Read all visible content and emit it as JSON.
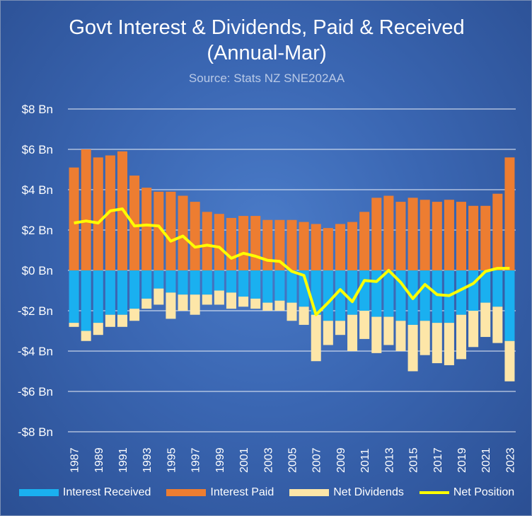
{
  "title": "Govt Interest & Dividends, Paid & Received",
  "subtitle": "(Annual-Mar)",
  "source": "Source: Stats NZ SNE202AA",
  "colors": {
    "interest_received": "#1ab0f0",
    "interest_paid": "#ed7d31",
    "net_dividends": "#fde6a8",
    "net_position": "#ffff00",
    "gridline": "#ffffff"
  },
  "chart_data": {
    "type": "bar",
    "stacked": true,
    "x_tick_labels": [
      "1987",
      "1989",
      "1991",
      "1993",
      "1995",
      "1997",
      "1999",
      "2001",
      "2003",
      "2005",
      "2007",
      "2009",
      "2011",
      "2013",
      "2015",
      "2017",
      "2019",
      "2021",
      "2023"
    ],
    "y_tick_labels": [
      "$8 Bn",
      "$6 Bn",
      "$4 Bn",
      "$2 Bn",
      "$0 Bn",
      "-$2 Bn",
      "-$4 Bn",
      "-$6 Bn",
      "-$8 Bn"
    ],
    "ylim": [
      -8,
      8
    ],
    "grid": true,
    "legend_position": "bottom",
    "x": [
      1987,
      1988,
      1989,
      1990,
      1991,
      1992,
      1993,
      1994,
      1995,
      1996,
      1997,
      1998,
      1999,
      2000,
      2001,
      2002,
      2003,
      2004,
      2005,
      2006,
      2007,
      2008,
      2009,
      2010,
      2011,
      2012,
      2013,
      2014,
      2015,
      2016,
      2017,
      2018,
      2019,
      2020,
      2021,
      2022,
      2023
    ],
    "series": [
      {
        "name": "Interest Received",
        "kind": "bar",
        "values": [
          -2.6,
          -3.0,
          -2.6,
          -2.2,
          -2.2,
          -1.9,
          -1.4,
          -0.9,
          -1.1,
          -1.2,
          -1.2,
          -1.2,
          -1.0,
          -1.1,
          -1.3,
          -1.4,
          -1.6,
          -1.5,
          -1.6,
          -1.8,
          -2.2,
          -2.5,
          -2.5,
          -2.2,
          -2.0,
          -2.3,
          -2.3,
          -2.5,
          -2.7,
          -2.5,
          -2.6,
          -2.6,
          -2.2,
          -2.0,
          -1.6,
          -1.8,
          -3.5
        ]
      },
      {
        "name": "Interest Paid",
        "kind": "bar",
        "values": [
          5.1,
          6.0,
          5.6,
          5.7,
          5.9,
          4.7,
          4.1,
          3.9,
          3.9,
          3.7,
          3.4,
          2.9,
          2.8,
          2.6,
          2.7,
          2.7,
          2.5,
          2.5,
          2.5,
          2.4,
          2.3,
          2.1,
          2.3,
          2.4,
          2.9,
          3.6,
          3.7,
          3.4,
          3.6,
          3.5,
          3.4,
          3.5,
          3.4,
          3.2,
          3.2,
          3.8,
          5.6
        ]
      },
      {
        "name": "Net Dividends",
        "kind": "bar",
        "values": [
          -0.2,
          -0.5,
          -0.6,
          -0.6,
          -0.6,
          -0.6,
          -0.5,
          -0.8,
          -1.3,
          -0.8,
          -1.0,
          -0.5,
          -0.7,
          -0.8,
          -0.5,
          -0.5,
          -0.4,
          -0.5,
          -0.9,
          -0.9,
          -2.3,
          -1.2,
          -0.7,
          -1.8,
          -1.4,
          -1.8,
          -1.4,
          -1.5,
          -2.3,
          -1.7,
          -2.0,
          -2.1,
          -2.2,
          -1.8,
          -1.7,
          -1.8,
          -2.0
        ]
      },
      {
        "name": "Net Position",
        "kind": "line",
        "values": [
          2.35,
          2.45,
          2.35,
          2.95,
          3.05,
          2.2,
          2.25,
          2.2,
          1.45,
          1.7,
          1.15,
          1.25,
          1.15,
          0.6,
          0.85,
          0.7,
          0.5,
          0.45,
          -0.05,
          -0.25,
          -2.2,
          -1.6,
          -0.95,
          -1.55,
          -0.5,
          -0.55,
          0.0,
          -0.6,
          -1.4,
          -0.7,
          -1.2,
          -1.25,
          -0.95,
          -0.65,
          -0.05,
          0.1,
          0.1
        ]
      }
    ]
  }
}
